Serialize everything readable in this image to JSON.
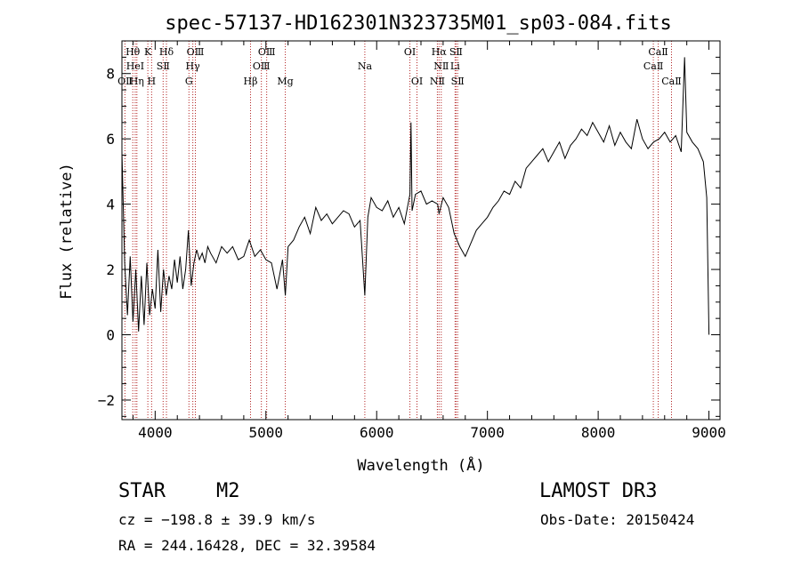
{
  "chart_data": {
    "type": "line",
    "title": "spec-57137-HD162301N323735M01_sp03-084.fits",
    "xlabel": "Wavelength (Å)",
    "ylabel": "Flux (relative)",
    "xlim": [
      3700,
      9100
    ],
    "ylim": [
      -2.6,
      9.0
    ],
    "x_ticks": [
      4000,
      5000,
      6000,
      7000,
      8000,
      9000
    ],
    "x_tick_labels": [
      "4000",
      "5000",
      "6000",
      "7000",
      "8000",
      "9000"
    ],
    "y_ticks": [
      -2,
      0,
      2,
      4,
      6,
      8
    ],
    "y_tick_labels": [
      "−2",
      "0",
      "2",
      "4",
      "6",
      "8"
    ],
    "series": [
      {
        "name": "spectrum",
        "x": [
          3700,
          3725,
          3750,
          3775,
          3800,
          3825,
          3850,
          3875,
          3900,
          3925,
          3950,
          3975,
          4000,
          4025,
          4050,
          4075,
          4100,
          4125,
          4150,
          4175,
          4200,
          4225,
          4250,
          4275,
          4300,
          4325,
          4350,
          4375,
          4400,
          4425,
          4450,
          4475,
          4500,
          4550,
          4600,
          4650,
          4700,
          4750,
          4800,
          4850,
          4900,
          4950,
          5000,
          5050,
          5100,
          5150,
          5175,
          5200,
          5250,
          5300,
          5350,
          5400,
          5450,
          5500,
          5550,
          5600,
          5650,
          5700,
          5750,
          5800,
          5850,
          5893,
          5920,
          5950,
          6000,
          6050,
          6100,
          6150,
          6200,
          6250,
          6300,
          6310,
          6320,
          6350,
          6400,
          6450,
          6500,
          6550,
          6563,
          6600,
          6650,
          6700,
          6750,
          6800,
          6850,
          6900,
          6950,
          7000,
          7050,
          7100,
          7150,
          7200,
          7250,
          7300,
          7350,
          7400,
          7450,
          7500,
          7550,
          7600,
          7650,
          7700,
          7750,
          7800,
          7850,
          7900,
          7950,
          8000,
          8050,
          8100,
          8150,
          8200,
          8250,
          8300,
          8350,
          8400,
          8450,
          8500,
          8550,
          8600,
          8650,
          8700,
          8750,
          8780,
          8800,
          8850,
          8900,
          8950,
          8980,
          9000
        ],
        "values": [
          5.6,
          2.2,
          0.6,
          2.4,
          0.4,
          2.0,
          0.1,
          1.8,
          0.3,
          2.2,
          0.6,
          1.4,
          0.8,
          2.6,
          0.7,
          2.0,
          1.2,
          1.8,
          1.4,
          2.3,
          1.6,
          2.4,
          1.4,
          2.0,
          3.2,
          1.5,
          2.2,
          2.6,
          2.3,
          2.5,
          2.2,
          2.7,
          2.5,
          2.2,
          2.7,
          2.5,
          2.7,
          2.3,
          2.4,
          2.9,
          2.4,
          2.6,
          2.3,
          2.2,
          1.4,
          2.3,
          1.2,
          2.7,
          2.9,
          3.3,
          3.6,
          3.1,
          3.9,
          3.5,
          3.7,
          3.4,
          3.6,
          3.8,
          3.7,
          3.3,
          3.5,
          1.2,
          3.6,
          4.2,
          3.9,
          3.8,
          4.1,
          3.6,
          3.9,
          3.4,
          4.3,
          6.5,
          3.8,
          4.3,
          4.4,
          4.0,
          4.1,
          4.0,
          3.7,
          4.2,
          3.9,
          3.1,
          2.7,
          2.4,
          2.8,
          3.2,
          3.4,
          3.6,
          3.9,
          4.1,
          4.4,
          4.3,
          4.7,
          4.5,
          5.1,
          5.3,
          5.5,
          5.7,
          5.3,
          5.6,
          5.9,
          5.4,
          5.8,
          6.0,
          6.3,
          6.1,
          6.5,
          6.2,
          5.9,
          6.4,
          5.8,
          6.2,
          5.9,
          5.7,
          6.6,
          6.0,
          5.7,
          5.9,
          6.0,
          6.2,
          5.9,
          6.1,
          5.6,
          8.5,
          6.2,
          5.9,
          5.7,
          5.3,
          4.2,
          0.0
        ]
      }
    ],
    "line_markers": [
      {
        "label": "OⅡ",
        "wavelength": 3727,
        "row": 3
      },
      {
        "label": "Hθ",
        "wavelength": 3798,
        "row": 1
      },
      {
        "label": "HeⅠ",
        "wavelength": 3820,
        "row": 2
      },
      {
        "label": "Hη",
        "wavelength": 3835,
        "row": 3
      },
      {
        "label": "K",
        "wavelength": 3934,
        "row": 1
      },
      {
        "label": "SⅡ",
        "wavelength": 4072,
        "row": 2
      },
      {
        "label": "H",
        "wavelength": 3968,
        "row": 3
      },
      {
        "label": "Hδ",
        "wavelength": 4102,
        "row": 1
      },
      {
        "label": "OⅢ",
        "wavelength": 4363,
        "row": 1
      },
      {
        "label": "Hγ",
        "wavelength": 4340,
        "row": 2
      },
      {
        "label": "G",
        "wavelength": 4305,
        "row": 3
      },
      {
        "label": "Hβ",
        "wavelength": 4861,
        "row": 3
      },
      {
        "label": "OⅢ",
        "wavelength": 5007,
        "row": 1
      },
      {
        "label": "OⅢ",
        "wavelength": 4959,
        "row": 2
      },
      {
        "label": "Mg",
        "wavelength": 5175,
        "row": 3
      },
      {
        "label": "Na",
        "wavelength": 5893,
        "row": 2
      },
      {
        "label": "OⅠ",
        "wavelength": 6300,
        "row": 1
      },
      {
        "label": "OⅠ",
        "wavelength": 6364,
        "row": 3
      },
      {
        "label": "Hα",
        "wavelength": 6563,
        "row": 1
      },
      {
        "label": "NⅡ",
        "wavelength": 6583,
        "row": 2
      },
      {
        "label": "NⅡ",
        "wavelength": 6548,
        "row": 3
      },
      {
        "label": "SⅡ",
        "wavelength": 6716,
        "row": 1
      },
      {
        "label": "Li",
        "wavelength": 6708,
        "row": 2
      },
      {
        "label": "SⅡ",
        "wavelength": 6731,
        "row": 3
      },
      {
        "label": "CaⅡ",
        "wavelength": 8542,
        "row": 1
      },
      {
        "label": "CaⅡ",
        "wavelength": 8498,
        "row": 2
      },
      {
        "label": "CaⅡ",
        "wavelength": 8662,
        "row": 3
      }
    ],
    "marker_color": "#b22222"
  },
  "info": {
    "object_class": "STAR",
    "subclass": "M2",
    "survey": "LAMOST DR3",
    "cz": "cz = −198.8 ± 39.9 km/s",
    "obs_date": "Obs-Date: 20150424",
    "coords": "RA = 244.16428, DEC =  32.39584"
  }
}
